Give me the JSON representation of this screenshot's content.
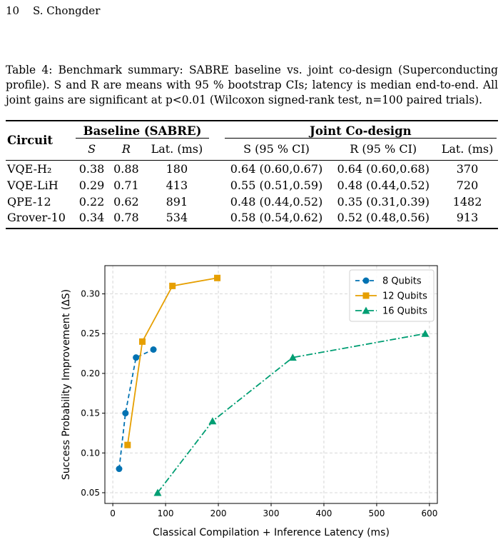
{
  "header": {
    "page_number": "10",
    "author": "S. Chongder"
  },
  "caption": {
    "label": "Table 4:",
    "text": "Benchmark summary: SABRE baseline vs. joint co-design (Superconducting profile). S and R are means with 95 % bootstrap CIs; latency is median end-to-end. All joint gains are significant at p<0.01 (Wilcoxon signed-rank test, n=100 paired trials)."
  },
  "table": {
    "circuit_header": "Circuit",
    "group_baseline": "Baseline (SABRE)",
    "group_joint": "Joint Co-design",
    "sub_headers": [
      "S",
      "R",
      "Lat. (ms)",
      "S (95 % CI)",
      "R (95 % CI)",
      "Lat. (ms)"
    ],
    "rows": [
      {
        "circuit": "VQE-H₂",
        "s": "0.38",
        "r": "0.88",
        "lat": "180",
        "js": "0.64 (0.60,0.67)",
        "jr": "0.64 (0.60,0.68)",
        "jlat": "370"
      },
      {
        "circuit": "VQE-LiH",
        "s": "0.29",
        "r": "0.71",
        "lat": "413",
        "js": "0.55 (0.51,0.59)",
        "jr": "0.48 (0.44,0.52)",
        "jlat": "720"
      },
      {
        "circuit": "QPE-12",
        "s": "0.22",
        "r": "0.62",
        "lat": "891",
        "js": "0.48 (0.44,0.52)",
        "jr": "0.35 (0.31,0.39)",
        "jlat": "1482"
      },
      {
        "circuit": "Grover-10",
        "s": "0.34",
        "r": "0.78",
        "lat": "534",
        "js": "0.58 (0.54,0.62)",
        "jr": "0.52 (0.48,0.56)",
        "jlat": "913"
      }
    ]
  },
  "chart_data": {
    "type": "line",
    "xlabel": "Classical Compilation + Inference Latency (ms)",
    "ylabel": "Success Probability Improvement (ΔS)",
    "xlim": [
      -15,
      615
    ],
    "ylim": [
      0.0365,
      0.3355
    ],
    "x_ticks": [
      0,
      100,
      200,
      300,
      400,
      500,
      600
    ],
    "y_ticks": [
      0.05,
      0.1,
      0.15,
      0.2,
      0.25,
      0.3
    ],
    "x_tick_labels": [
      "0",
      "100",
      "200",
      "300",
      "400",
      "500",
      "600"
    ],
    "y_tick_labels": [
      "0.05",
      "0.10",
      "0.15",
      "0.20",
      "0.25",
      "0.30"
    ],
    "grid": true,
    "legend_position": "top-right",
    "series": [
      {
        "name": "8 Qubits",
        "color": "#0072b2",
        "marker": "circle",
        "dash": "6,4",
        "x": [
          12,
          24,
          44,
          77
        ],
        "y": [
          0.08,
          0.15,
          0.22,
          0.23
        ]
      },
      {
        "name": "12 Qubits",
        "color": "#e69f00",
        "marker": "square",
        "dash": "",
        "x": [
          28,
          56,
          113,
          198
        ],
        "y": [
          0.11,
          0.24,
          0.31,
          0.32
        ]
      },
      {
        "name": "16 Qubits",
        "color": "#009e73",
        "marker": "triangle",
        "dash": "9,3,2,3",
        "x": [
          85,
          189,
          341,
          592
        ],
        "y": [
          0.05,
          0.14,
          0.22,
          0.25
        ]
      }
    ]
  }
}
